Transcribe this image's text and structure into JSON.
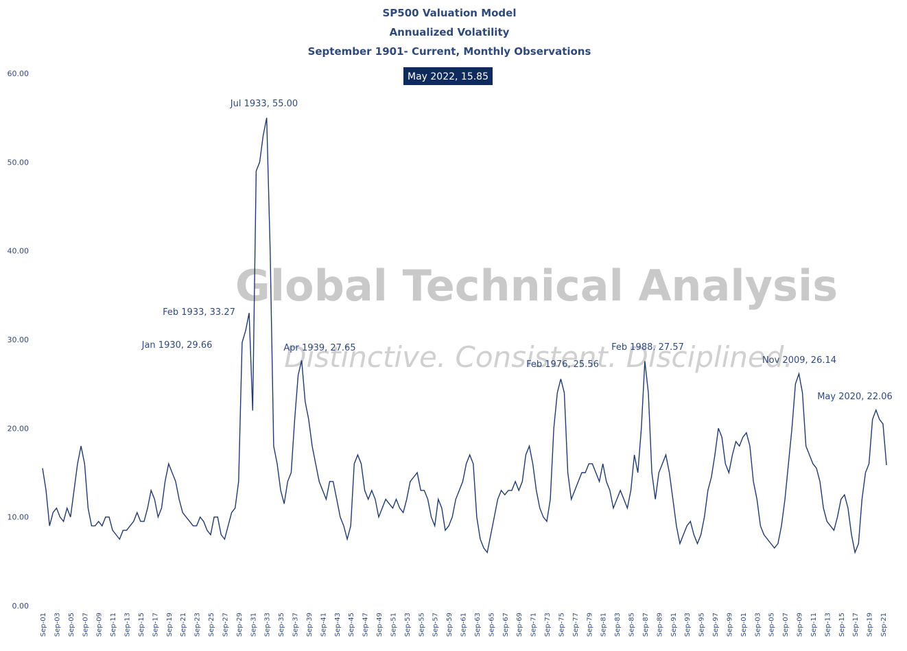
{
  "chart_data": {
    "type": "line",
    "title": "SP500 Valuation Model",
    "subtitle": "Annualized Volatility",
    "subtitle2": "September 1901- Current, Monthly Observations",
    "highlight": "May 2022, 15.85",
    "watermark": [
      "Global Technical Analysis",
      "Distinctive. Consistent. Disciplined."
    ],
    "annotations": [
      "Jul 1933, 55.00",
      "Feb 1933, 33.27",
      "Jan 1930, 29.66",
      "Apr 1939, 27.65",
      "Feb 1976, 25.56",
      "Feb 1988, 27.57",
      "Nov 2009, 26.14",
      "May 2020, 22.06"
    ],
    "ylim": [
      0,
      60
    ],
    "yticks": [
      {
        "value": 0,
        "label": "0.00"
      },
      {
        "value": 10,
        "label": "10.00"
      },
      {
        "value": 20,
        "label": "20.00"
      },
      {
        "value": 30,
        "label": "30.00"
      },
      {
        "value": 40,
        "label": "40.00"
      },
      {
        "value": 50,
        "label": "50.00"
      },
      {
        "value": 60,
        "label": "60.00"
      }
    ],
    "grid": false,
    "categories": [
      "Sep-01",
      null,
      null,
      null,
      "Sep-03",
      null,
      null,
      null,
      "Sep-05",
      null,
      null,
      null,
      "Sep-07",
      null,
      null,
      null,
      "Sep-09",
      null,
      null,
      null,
      "Sep-11",
      null,
      null,
      null,
      "Sep-13",
      null,
      null,
      null,
      "Sep-15",
      null,
      null,
      null,
      "Sep-17",
      null,
      null,
      null,
      "Sep-19",
      null,
      null,
      null,
      "Sep-21",
      null,
      null,
      null,
      "Sep-23",
      null,
      null,
      null,
      "Sep-25",
      null,
      null,
      null,
      "Sep-27",
      null,
      null,
      null,
      "Sep-29",
      null,
      null,
      null,
      "Sep-31",
      null,
      null,
      null,
      "Sep-33",
      null,
      null,
      null,
      "Sep-35",
      null,
      null,
      null,
      "Sep-37",
      null,
      null,
      null,
      "Sep-39",
      null,
      null,
      null,
      "Sep-41",
      null,
      null,
      null,
      "Sep-43",
      null,
      null,
      null,
      "Sep-45",
      null,
      null,
      null,
      "Sep-47",
      null,
      null,
      null,
      "Sep-49",
      null,
      null,
      null,
      "Sep-51",
      null,
      null,
      null,
      "Sep-53",
      null,
      null,
      null,
      "Sep-55",
      null,
      null,
      null,
      "Sep-57",
      null,
      null,
      null,
      "Sep-59",
      null,
      null,
      null,
      "Sep-61",
      null,
      null,
      null,
      "Sep-63",
      null,
      null,
      null,
      "Sep-65",
      null,
      null,
      null,
      "Sep-67",
      null,
      null,
      null,
      "Sep-69",
      null,
      null,
      null,
      "Sep-71",
      null,
      null,
      null,
      "Sep-73",
      null,
      null,
      null,
      "Sep-75",
      null,
      null,
      null,
      "Sep-77",
      null,
      null,
      null,
      "Sep-79",
      null,
      null,
      null,
      "Sep-81",
      null,
      null,
      null,
      "Sep-83",
      null,
      null,
      null,
      "Sep-85",
      null,
      null,
      null,
      "Sep-87",
      null,
      null,
      null,
      "Sep-89",
      null,
      null,
      null,
      "Sep-91",
      null,
      null,
      null,
      "Sep-93",
      null,
      null,
      null,
      "Sep-95",
      null,
      null,
      null,
      "Sep-97",
      null,
      null,
      null,
      "Sep-99",
      null,
      null,
      null,
      "Sep-01",
      null,
      null,
      null,
      "Sep-03",
      null,
      null,
      null,
      "Sep-05",
      null,
      null,
      null,
      "Sep-07",
      null,
      null,
      null,
      "Sep-09",
      null,
      null,
      null,
      "Sep-11",
      null,
      null,
      null,
      "Sep-13",
      null,
      null,
      null,
      "Sep-15",
      null,
      null,
      null,
      "Sep-17",
      null,
      null,
      null,
      "Sep-19",
      null,
      null,
      null,
      "Sep-21",
      null
    ],
    "series": [
      {
        "color": "#1f3a6e",
        "values": [
          15.5,
          13,
          9,
          10.5,
          11,
          10,
          9.5,
          11,
          10,
          13,
          16,
          18,
          16,
          11,
          9,
          9,
          9.5,
          9,
          10,
          10,
          8.5,
          8,
          7.5,
          8.5,
          8.5,
          9,
          9.5,
          10.5,
          9.5,
          9.5,
          11,
          13,
          12,
          10,
          11,
          14,
          16,
          15,
          14,
          12,
          10.5,
          10,
          9.5,
          9,
          9,
          10,
          9.5,
          8.5,
          8,
          10,
          10,
          8,
          7.5,
          9,
          10.5,
          11,
          14,
          29.66,
          31,
          33,
          22,
          49,
          50,
          53,
          55,
          40,
          18,
          16,
          13,
          11.5,
          14,
          15,
          21,
          26,
          27.65,
          23,
          21,
          18,
          16,
          14,
          13,
          12,
          14,
          14,
          12,
          10,
          9,
          7.5,
          9,
          16,
          17,
          16,
          13,
          12,
          13,
          12,
          10,
          11,
          12,
          11.5,
          11,
          12,
          11,
          10.5,
          12,
          14,
          14.5,
          15,
          13,
          13,
          12,
          10,
          9,
          12,
          11,
          8.5,
          9,
          10,
          12,
          13,
          14,
          16,
          17,
          16,
          10,
          7.5,
          6.5,
          6,
          8,
          10,
          12,
          13,
          12.5,
          13,
          13,
          14,
          13,
          14,
          17,
          18,
          16,
          13,
          11,
          10,
          9.5,
          12,
          20,
          24,
          25.56,
          24,
          15,
          12,
          13,
          14,
          15,
          15,
          16,
          16,
          15,
          14,
          16,
          14,
          13,
          11,
          12,
          13,
          12,
          11,
          13,
          17,
          15,
          20,
          27.57,
          24,
          15,
          12,
          15,
          16,
          17,
          15,
          12,
          9,
          7,
          8,
          9,
          9.5,
          8,
          7,
          8,
          10,
          13,
          14.5,
          17,
          20,
          19,
          16,
          15,
          17,
          18.5,
          18,
          19,
          19.5,
          18,
          14,
          12,
          9,
          8,
          7.5,
          7,
          6.5,
          7,
          9,
          12,
          16,
          20,
          25,
          26.14,
          24,
          18,
          17,
          16,
          15.5,
          14,
          11,
          9.5,
          9,
          8.5,
          10,
          12,
          12.5,
          11,
          8,
          6,
          7,
          12,
          15,
          16,
          21,
          22.06,
          21,
          20.5,
          15.85
        ]
      }
    ]
  }
}
